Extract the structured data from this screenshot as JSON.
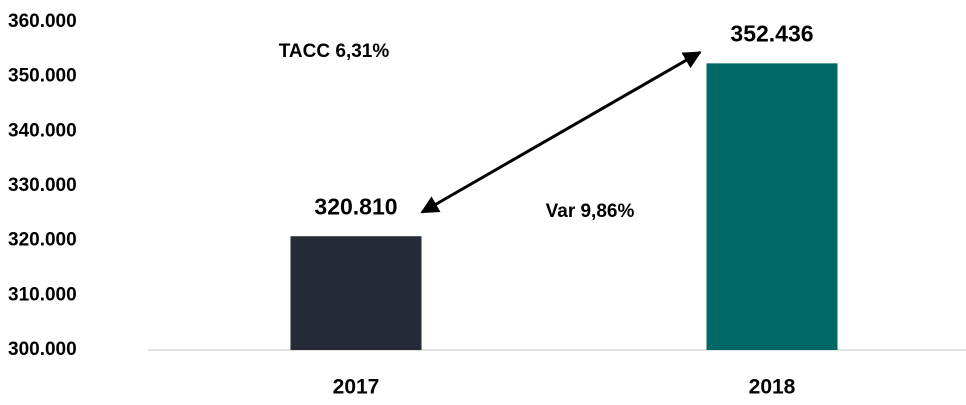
{
  "chart_data": {
    "type": "bar",
    "categories": [
      "2017",
      "2018"
    ],
    "values": [
      320810,
      352436
    ],
    "value_labels": [
      "320.810",
      "352.436"
    ],
    "colors": [
      "#252c38",
      "#006966"
    ],
    "ylim": [
      300000,
      360000
    ],
    "yticks": [
      {
        "value": 300000,
        "label": "300.000"
      },
      {
        "value": 310000,
        "label": "310.000"
      },
      {
        "value": 320000,
        "label": "320.000"
      },
      {
        "value": 330000,
        "label": "330.000"
      },
      {
        "value": 340000,
        "label": "340.000"
      },
      {
        "value": 350000,
        "label": "350.000"
      },
      {
        "value": 360000,
        "label": "360.000"
      }
    ],
    "grid": false,
    "annotations": [
      "TACC 6,31%",
      "Var 9,86%"
    ]
  }
}
